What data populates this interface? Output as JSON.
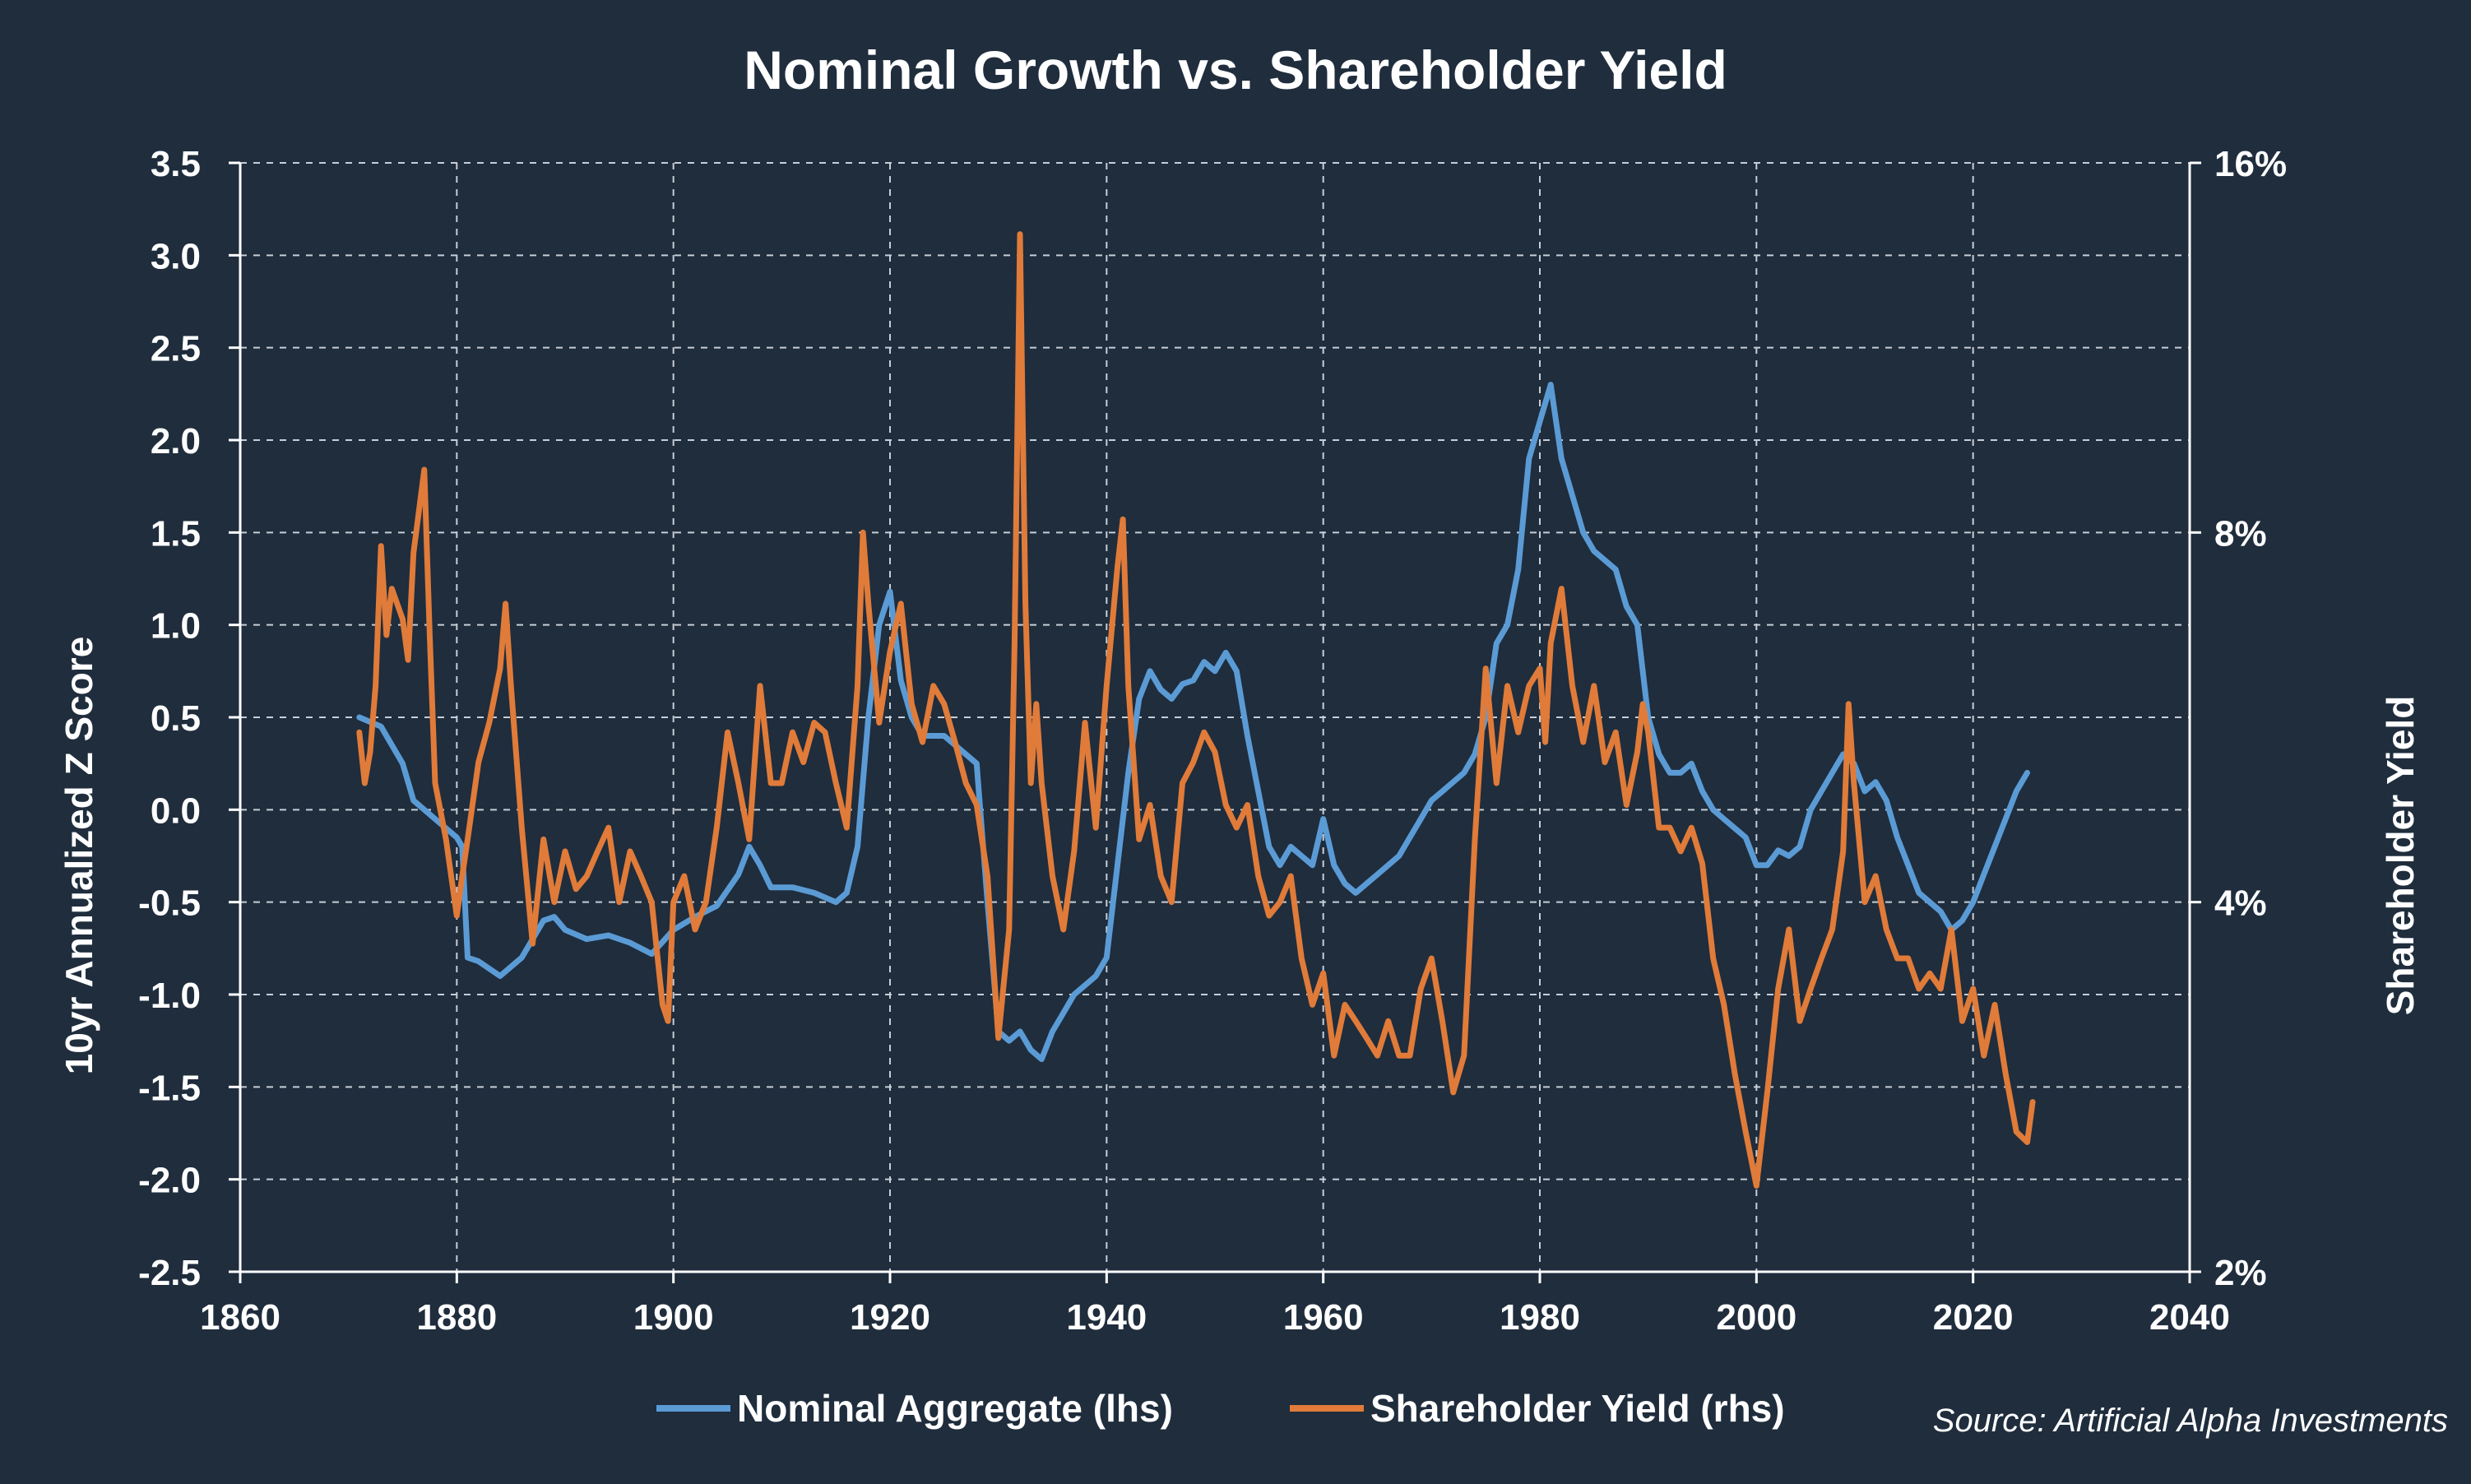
{
  "chart_data": {
    "type": "line",
    "title": "Nominal Growth vs. Shareholder Yield",
    "ylabel": "10yr Annualized Z Score",
    "y2label": "Shareholder Yield",
    "source": "Source: Artificial Alpha Investments",
    "xlim": [
      1860,
      2040
    ],
    "ylim": [
      -2.5,
      3.5
    ],
    "y2lim": [
      2,
      16
    ],
    "y2scale": "log",
    "grid": true,
    "legend_position": "bottom",
    "x_ticks": [
      "1860",
      "1880",
      "1900",
      "1920",
      "1940",
      "1960",
      "1980",
      "2000",
      "2020",
      "2040"
    ],
    "y_ticks": [
      "3.5",
      "3.0",
      "2.5",
      "2.0",
      "1.5",
      "1.0",
      "0.5",
      "0.0",
      "-0.5",
      "-1.0",
      "-1.5",
      "-2.0",
      "-2.5"
    ],
    "y2_ticks": [
      "16%",
      "8%",
      "4%",
      "2%"
    ],
    "series": [
      {
        "name": "Nominal Aggregate (lhs)",
        "axis": "left",
        "color": "#5b9bd5",
        "points": [
          [
            1871,
            0.5
          ],
          [
            1873,
            0.45
          ],
          [
            1875,
            0.25
          ],
          [
            1876,
            0.05
          ],
          [
            1878,
            -0.05
          ],
          [
            1880,
            -0.15
          ],
          [
            1880.5,
            -0.2
          ],
          [
            1881,
            -0.8
          ],
          [
            1882,
            -0.82
          ],
          [
            1884,
            -0.9
          ],
          [
            1886,
            -0.8
          ],
          [
            1888,
            -0.6
          ],
          [
            1889,
            -0.58
          ],
          [
            1890,
            -0.65
          ],
          [
            1892,
            -0.7
          ],
          [
            1894,
            -0.68
          ],
          [
            1896,
            -0.72
          ],
          [
            1898,
            -0.78
          ],
          [
            1900,
            -0.65
          ],
          [
            1902,
            -0.58
          ],
          [
            1904,
            -0.52
          ],
          [
            1906,
            -0.35
          ],
          [
            1907,
            -0.2
          ],
          [
            1908,
            -0.3
          ],
          [
            1909,
            -0.42
          ],
          [
            1911,
            -0.42
          ],
          [
            1913,
            -0.45
          ],
          [
            1915,
            -0.5
          ],
          [
            1916,
            -0.45
          ],
          [
            1917,
            -0.2
          ],
          [
            1918,
            0.5
          ],
          [
            1919,
            1.0
          ],
          [
            1920,
            1.18
          ],
          [
            1921,
            0.7
          ],
          [
            1922,
            0.5
          ],
          [
            1923,
            0.4
          ],
          [
            1925,
            0.4
          ],
          [
            1927,
            0.3
          ],
          [
            1928,
            0.25
          ],
          [
            1929,
            -0.5
          ],
          [
            1930,
            -1.2
          ],
          [
            1931,
            -1.25
          ],
          [
            1932,
            -1.2
          ],
          [
            1933,
            -1.3
          ],
          [
            1934,
            -1.35
          ],
          [
            1935,
            -1.2
          ],
          [
            1936,
            -1.1
          ],
          [
            1937,
            -1.0
          ],
          [
            1938,
            -0.95
          ],
          [
            1939,
            -0.9
          ],
          [
            1940,
            -0.8
          ],
          [
            1941,
            -0.3
          ],
          [
            1942,
            0.2
          ],
          [
            1943,
            0.6
          ],
          [
            1944,
            0.75
          ],
          [
            1945,
            0.65
          ],
          [
            1946,
            0.6
          ],
          [
            1947,
            0.68
          ],
          [
            1948,
            0.7
          ],
          [
            1949,
            0.8
          ],
          [
            1950,
            0.75
          ],
          [
            1951,
            0.85
          ],
          [
            1952,
            0.75
          ],
          [
            1953,
            0.4
          ],
          [
            1954,
            0.1
          ],
          [
            1955,
            -0.2
          ],
          [
            1956,
            -0.3
          ],
          [
            1957,
            -0.2
          ],
          [
            1958,
            -0.25
          ],
          [
            1959,
            -0.3
          ],
          [
            1960,
            -0.05
          ],
          [
            1961,
            -0.3
          ],
          [
            1962,
            -0.4
          ],
          [
            1963,
            -0.45
          ],
          [
            1964,
            -0.4
          ],
          [
            1965,
            -0.35
          ],
          [
            1966,
            -0.3
          ],
          [
            1967,
            -0.25
          ],
          [
            1968,
            -0.15
          ],
          [
            1969,
            -0.05
          ],
          [
            1970,
            0.05
          ],
          [
            1971,
            0.1
          ],
          [
            1972,
            0.15
          ],
          [
            1973,
            0.2
          ],
          [
            1974,
            0.3
          ],
          [
            1975,
            0.5
          ],
          [
            1976,
            0.9
          ],
          [
            1977,
            1.0
          ],
          [
            1978,
            1.3
          ],
          [
            1979,
            1.9
          ],
          [
            1980,
            2.1
          ],
          [
            1981,
            2.3
          ],
          [
            1982,
            1.9
          ],
          [
            1983,
            1.7
          ],
          [
            1984,
            1.5
          ],
          [
            1985,
            1.4
          ],
          [
            1986,
            1.35
          ],
          [
            1987,
            1.3
          ],
          [
            1988,
            1.1
          ],
          [
            1989,
            1.0
          ],
          [
            1990,
            0.5
          ],
          [
            1991,
            0.3
          ],
          [
            1992,
            0.2
          ],
          [
            1993,
            0.2
          ],
          [
            1994,
            0.25
          ],
          [
            1995,
            0.1
          ],
          [
            1996,
            0.0
          ],
          [
            1997,
            -0.05
          ],
          [
            1998,
            -0.1
          ],
          [
            1999,
            -0.15
          ],
          [
            2000,
            -0.3
          ],
          [
            2001,
            -0.3
          ],
          [
            2002,
            -0.22
          ],
          [
            2003,
            -0.25
          ],
          [
            2004,
            -0.2
          ],
          [
            2005,
            0.0
          ],
          [
            2006,
            0.1
          ],
          [
            2007,
            0.2
          ],
          [
            2008,
            0.3
          ],
          [
            2009,
            0.25
          ],
          [
            2010,
            0.1
          ],
          [
            2011,
            0.15
          ],
          [
            2012,
            0.05
          ],
          [
            2013,
            -0.15
          ],
          [
            2014,
            -0.3
          ],
          [
            2015,
            -0.45
          ],
          [
            2016,
            -0.5
          ],
          [
            2017,
            -0.55
          ],
          [
            2018,
            -0.65
          ],
          [
            2019,
            -0.6
          ],
          [
            2020,
            -0.5
          ],
          [
            2021,
            -0.35
          ],
          [
            2022,
            -0.2
          ],
          [
            2023,
            -0.05
          ],
          [
            2024,
            0.1
          ],
          [
            2025,
            0.2
          ]
        ]
      },
      {
        "name": "Shareholder Yield (rhs)",
        "axis": "right",
        "color": "#e07b39",
        "points": [
          [
            1871,
            5.5
          ],
          [
            1871.5,
            5.0
          ],
          [
            1872,
            5.3
          ],
          [
            1872.5,
            6.0
          ],
          [
            1873,
            7.8
          ],
          [
            1873.5,
            6.6
          ],
          [
            1874,
            7.2
          ],
          [
            1875,
            6.8
          ],
          [
            1875.5,
            6.3
          ],
          [
            1876,
            7.7
          ],
          [
            1877,
            9.0
          ],
          [
            1877.5,
            6.6
          ],
          [
            1878,
            5.0
          ],
          [
            1879,
            4.5
          ],
          [
            1880,
            3.9
          ],
          [
            1880.5,
            4.2
          ],
          [
            1881,
            4.5
          ],
          [
            1882,
            5.2
          ],
          [
            1883,
            5.6
          ],
          [
            1884,
            6.2
          ],
          [
            1884.5,
            7.0
          ],
          [
            1885,
            6.0
          ],
          [
            1886,
            4.6
          ],
          [
            1887,
            3.7
          ],
          [
            1888,
            4.5
          ],
          [
            1889,
            4.0
          ],
          [
            1890,
            4.4
          ],
          [
            1891,
            4.1
          ],
          [
            1892,
            4.2
          ],
          [
            1893,
            4.4
          ],
          [
            1894,
            4.6
          ],
          [
            1895,
            4.0
          ],
          [
            1896,
            4.4
          ],
          [
            1897,
            4.2
          ],
          [
            1898,
            4.0
          ],
          [
            1899,
            3.3
          ],
          [
            1899.5,
            3.2
          ],
          [
            1900,
            4.0
          ],
          [
            1901,
            4.2
          ],
          [
            1902,
            3.8
          ],
          [
            1903,
            4.0
          ],
          [
            1904,
            4.6
          ],
          [
            1905,
            5.5
          ],
          [
            1906,
            5.0
          ],
          [
            1907,
            4.5
          ],
          [
            1908,
            6.0
          ],
          [
            1909,
            5.0
          ],
          [
            1910,
            5.0
          ],
          [
            1911,
            5.5
          ],
          [
            1912,
            5.2
          ],
          [
            1913,
            5.6
          ],
          [
            1914,
            5.5
          ],
          [
            1915,
            5.0
          ],
          [
            1916,
            4.6
          ],
          [
            1917,
            6.0
          ],
          [
            1917.5,
            8.0
          ],
          [
            1918,
            7.0
          ],
          [
            1919,
            5.6
          ],
          [
            1920,
            6.4
          ],
          [
            1921,
            7.0
          ],
          [
            1922,
            5.8
          ],
          [
            1923,
            5.4
          ],
          [
            1924,
            6.0
          ],
          [
            1925,
            5.8
          ],
          [
            1926,
            5.4
          ],
          [
            1927,
            5.0
          ],
          [
            1928,
            4.8
          ],
          [
            1929,
            4.2
          ],
          [
            1930,
            3.1
          ],
          [
            1931,
            3.8
          ],
          [
            1931.5,
            6.5
          ],
          [
            1932,
            14.0
          ],
          [
            1932.5,
            7.0
          ],
          [
            1933,
            5.0
          ],
          [
            1933.5,
            5.8
          ],
          [
            1934,
            5.0
          ],
          [
            1935,
            4.2
          ],
          [
            1936,
            3.8
          ],
          [
            1937,
            4.4
          ],
          [
            1938,
            5.6
          ],
          [
            1939,
            4.6
          ],
          [
            1940,
            6.0
          ],
          [
            1941,
            7.5
          ],
          [
            1941.5,
            8.2
          ],
          [
            1942,
            6.0
          ],
          [
            1943,
            4.5
          ],
          [
            1944,
            4.8
          ],
          [
            1945,
            4.2
          ],
          [
            1946,
            4.0
          ],
          [
            1947,
            5.0
          ],
          [
            1948,
            5.2
          ],
          [
            1949,
            5.5
          ],
          [
            1950,
            5.3
          ],
          [
            1951,
            4.8
          ],
          [
            1952,
            4.6
          ],
          [
            1953,
            4.8
          ],
          [
            1954,
            4.2
          ],
          [
            1955,
            3.9
          ],
          [
            1956,
            4.0
          ],
          [
            1957,
            4.2
          ],
          [
            1958,
            3.6
          ],
          [
            1959,
            3.3
          ],
          [
            1960,
            3.5
          ],
          [
            1961,
            3.0
          ],
          [
            1962,
            3.3
          ],
          [
            1963,
            3.2
          ],
          [
            1964,
            3.1
          ],
          [
            1965,
            3.0
          ],
          [
            1966,
            3.2
          ],
          [
            1967,
            3.0
          ],
          [
            1968,
            3.0
          ],
          [
            1969,
            3.4
          ],
          [
            1970,
            3.6
          ],
          [
            1971,
            3.2
          ],
          [
            1972,
            2.8
          ],
          [
            1973,
            3.0
          ],
          [
            1974,
            4.5
          ],
          [
            1975,
            6.2
          ],
          [
            1976,
            5.0
          ],
          [
            1977,
            6.0
          ],
          [
            1978,
            5.5
          ],
          [
            1979,
            6.0
          ],
          [
            1980,
            6.2
          ],
          [
            1980.5,
            5.4
          ],
          [
            1981,
            6.5
          ],
          [
            1982,
            7.2
          ],
          [
            1983,
            6.0
          ],
          [
            1984,
            5.4
          ],
          [
            1985,
            6.0
          ],
          [
            1986,
            5.2
          ],
          [
            1987,
            5.5
          ],
          [
            1988,
            4.8
          ],
          [
            1989,
            5.3
          ],
          [
            1989.5,
            5.8
          ],
          [
            1990,
            5.5
          ],
          [
            1991,
            4.6
          ],
          [
            1992,
            4.6
          ],
          [
            1993,
            4.4
          ],
          [
            1994,
            4.6
          ],
          [
            1995,
            4.3
          ],
          [
            1996,
            3.6
          ],
          [
            1997,
            3.3
          ],
          [
            1998,
            2.9
          ],
          [
            1999,
            2.6
          ],
          [
            2000,
            2.35
          ],
          [
            2001,
            2.8
          ],
          [
            2002,
            3.4
          ],
          [
            2003,
            3.8
          ],
          [
            2004,
            3.2
          ],
          [
            2005,
            3.4
          ],
          [
            2006,
            3.6
          ],
          [
            2007,
            3.8
          ],
          [
            2008,
            4.4
          ],
          [
            2008.5,
            5.8
          ],
          [
            2009,
            5.0
          ],
          [
            2010,
            4.0
          ],
          [
            2011,
            4.2
          ],
          [
            2012,
            3.8
          ],
          [
            2013,
            3.6
          ],
          [
            2014,
            3.6
          ],
          [
            2015,
            3.4
          ],
          [
            2016,
            3.5
          ],
          [
            2017,
            3.4
          ],
          [
            2018,
            3.8
          ],
          [
            2019,
            3.2
          ],
          [
            2020,
            3.4
          ],
          [
            2021,
            3.0
          ],
          [
            2022,
            3.3
          ],
          [
            2023,
            2.9
          ],
          [
            2024,
            2.6
          ],
          [
            2025,
            2.55
          ],
          [
            2025.5,
            2.75
          ]
        ]
      }
    ]
  }
}
